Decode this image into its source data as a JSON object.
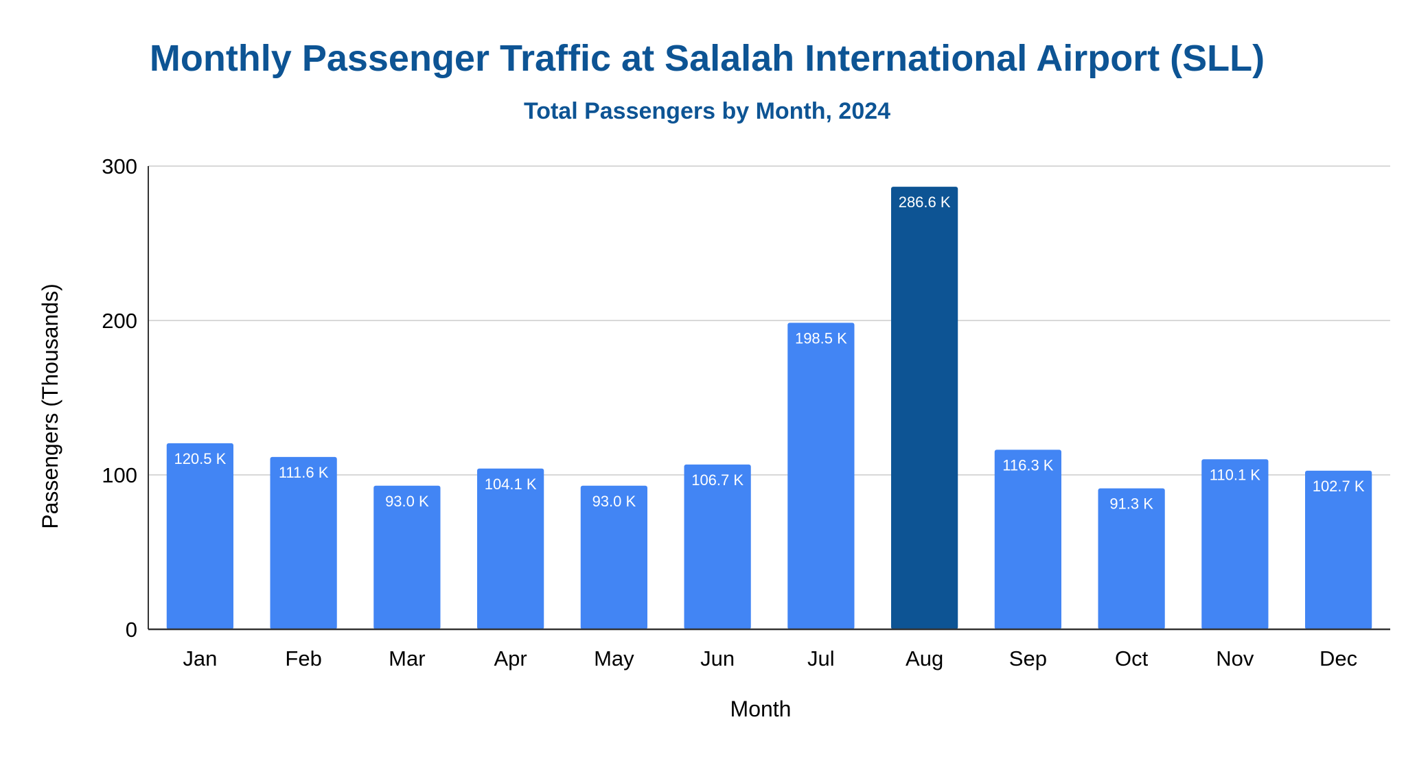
{
  "chart_data": {
    "type": "bar",
    "title": "Monthly Passenger Traffic at Salalah International Airport (SLL)",
    "subtitle": "Total Passengers by Month, 2024",
    "xlabel": "Month",
    "ylabel": "Passengers (Thousands)",
    "ylim": [
      0,
      300
    ],
    "yticks": [
      0,
      100,
      200,
      300
    ],
    "grid": true,
    "categories": [
      "Jan",
      "Feb",
      "Mar",
      "Apr",
      "May",
      "Jun",
      "Jul",
      "Aug",
      "Sep",
      "Oct",
      "Nov",
      "Dec"
    ],
    "values": [
      120.5,
      111.6,
      93.0,
      104.1,
      93.0,
      106.7,
      198.5,
      286.6,
      116.3,
      91.3,
      110.1,
      102.7
    ],
    "data_labels": [
      "120.5 K",
      "111.6 K",
      "93.0 K",
      "104.1 K",
      "93.0 K",
      "106.7 K",
      "198.5 K",
      "286.6 K",
      "116.3 K",
      "91.3 K",
      "110.1 K",
      "102.7 K"
    ],
    "highlight_category": "Aug",
    "colors": {
      "bar": "#4285f4",
      "highlight": "#0d5494",
      "title": "#0d5494",
      "grid": "#cccccc",
      "axis": "#333333",
      "label_text": "#ffffff"
    }
  }
}
